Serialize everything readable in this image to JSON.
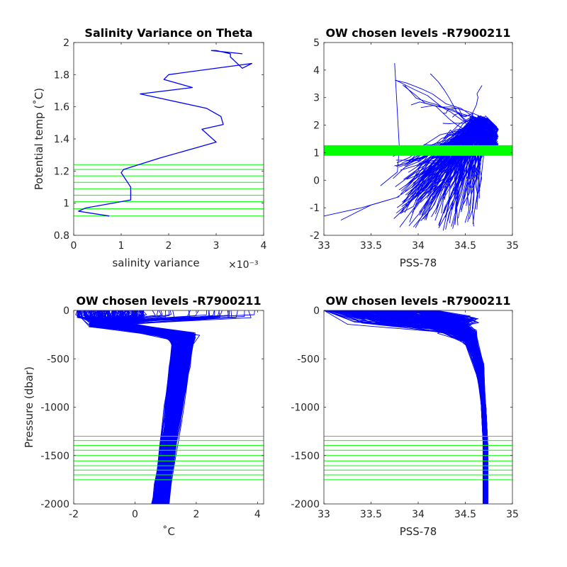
{
  "colors": {
    "profile": "#0000ff",
    "level": "#00ff00",
    "axis": "#262626",
    "background": "#ffffff"
  },
  "chart_data": [
    {
      "id": "salvar",
      "type": "line",
      "title": "Salinity Variance on Theta",
      "xlabel": "salinity variance",
      "xexponent": "×10⁻³",
      "ylabel": "Potential temp (˚C)",
      "xlim": [
        0,
        4
      ],
      "ylim": [
        0.8,
        2
      ],
      "xticks": [
        0,
        1,
        2,
        3,
        4
      ],
      "xticklabels": [
        "0",
        "1",
        "2",
        "3",
        "4"
      ],
      "yticks": [
        0.8,
        1,
        1.2,
        1.4,
        1.6,
        1.8,
        2
      ],
      "yticklabels": [
        "0.8",
        "1",
        "1.2",
        "1.4",
        "1.6",
        "1.8",
        "2"
      ],
      "series": [
        {
          "x": [
            0.75,
            0.1,
            0.25,
            1.2,
            1.2,
            1.0,
            1.05,
            1.8,
            3.0,
            2.7,
            3.15,
            3.1,
            2.8,
            1.4,
            2.5,
            1.9,
            2.0,
            3.75,
            3.55,
            3.3,
            3.3,
            3.0,
            2.9,
            3.55
          ],
          "y": [
            0.92,
            0.95,
            0.97,
            1.02,
            1.1,
            1.19,
            1.21,
            1.28,
            1.38,
            1.46,
            1.49,
            1.54,
            1.59,
            1.68,
            1.72,
            1.77,
            1.8,
            1.87,
            1.84,
            1.91,
            1.93,
            1.95,
            1.95,
            1.93
          ]
        }
      ],
      "levels": [
        0.92,
        0.965,
        1.01,
        1.05,
        1.09,
        1.13,
        1.17,
        1.21,
        1.24
      ]
    },
    {
      "id": "ts",
      "type": "line",
      "title": "OW chosen levels -R7900211",
      "xlabel": "PSS-78",
      "ylabel": "",
      "xlim": [
        33,
        35
      ],
      "ylim": [
        -2,
        5
      ],
      "xticks": [
        33,
        33.5,
        34,
        34.5,
        35
      ],
      "xticklabels": [
        "33",
        "33.5",
        "34",
        "34.5",
        "35"
      ],
      "yticks": [
        -2,
        -1,
        0,
        1,
        2,
        3,
        4,
        5
      ],
      "yticklabels": [
        "-2",
        "-1",
        "0",
        "1",
        "2",
        "3",
        "4",
        "5"
      ],
      "levels": [
        0.92,
        0.965,
        1.01,
        1.05,
        1.09,
        1.13,
        1.17,
        1.21,
        1.24
      ],
      "features": {
        "min_salinity": 33.0,
        "max_salinity": 34.75,
        "max_theta": 4.25,
        "min_theta": -1.85,
        "salinity_at_deep_theta": 34.72,
        "theta_at_deep_end": 0.95
      }
    },
    {
      "id": "tp",
      "type": "line",
      "title": "OW chosen levels -R7900211",
      "xlabel": "˚C",
      "ylabel": "Pressure (dbar)",
      "xlim": [
        -2,
        4.2
      ],
      "ylim": [
        -2000,
        0
      ],
      "xticks": [
        -2,
        0,
        2,
        4
      ],
      "xticklabels": [
        "-2",
        "0",
        "2",
        "4"
      ],
      "yticks": [
        -2000,
        -1500,
        -1000,
        -500,
        0
      ],
      "yticklabels": [
        "-2000",
        "-1500",
        "-1000",
        "-500",
        "0"
      ],
      "levels": [
        -1300,
        -1345,
        -1395,
        -1445,
        -1500,
        -1555,
        -1605,
        -1650,
        -1700,
        -1750
      ],
      "features": {
        "surface_temperature_range": [
          -1.9,
          4.2
        ],
        "temp_max_at_300dbar": 1.9,
        "temp_range_at_2000dbar": [
          0.5,
          1.1
        ]
      }
    },
    {
      "id": "sp",
      "type": "line",
      "title": "OW chosen levels -R7900211",
      "xlabel": "PSS-78",
      "ylabel": "",
      "xlim": [
        33,
        35
      ],
      "ylim": [
        -2000,
        0
      ],
      "xticks": [
        33,
        33.5,
        34,
        34.5,
        35
      ],
      "xticklabels": [
        "33",
        "33.5",
        "34",
        "34.5",
        "35"
      ],
      "yticks": [
        -2000,
        -1500,
        -1000,
        -500,
        0
      ],
      "yticklabels": [
        "-2000",
        "-1500",
        "-1000",
        "-500",
        "0"
      ],
      "levels": [
        -1300,
        -1345,
        -1395,
        -1445,
        -1500,
        -1555,
        -1605,
        -1650,
        -1700,
        -1750
      ],
      "features": {
        "surface_salinity_range": [
          33.0,
          34.2
        ],
        "halocline_depth": -150,
        "deep_salinity_range": [
          34.68,
          34.74
        ]
      }
    }
  ]
}
